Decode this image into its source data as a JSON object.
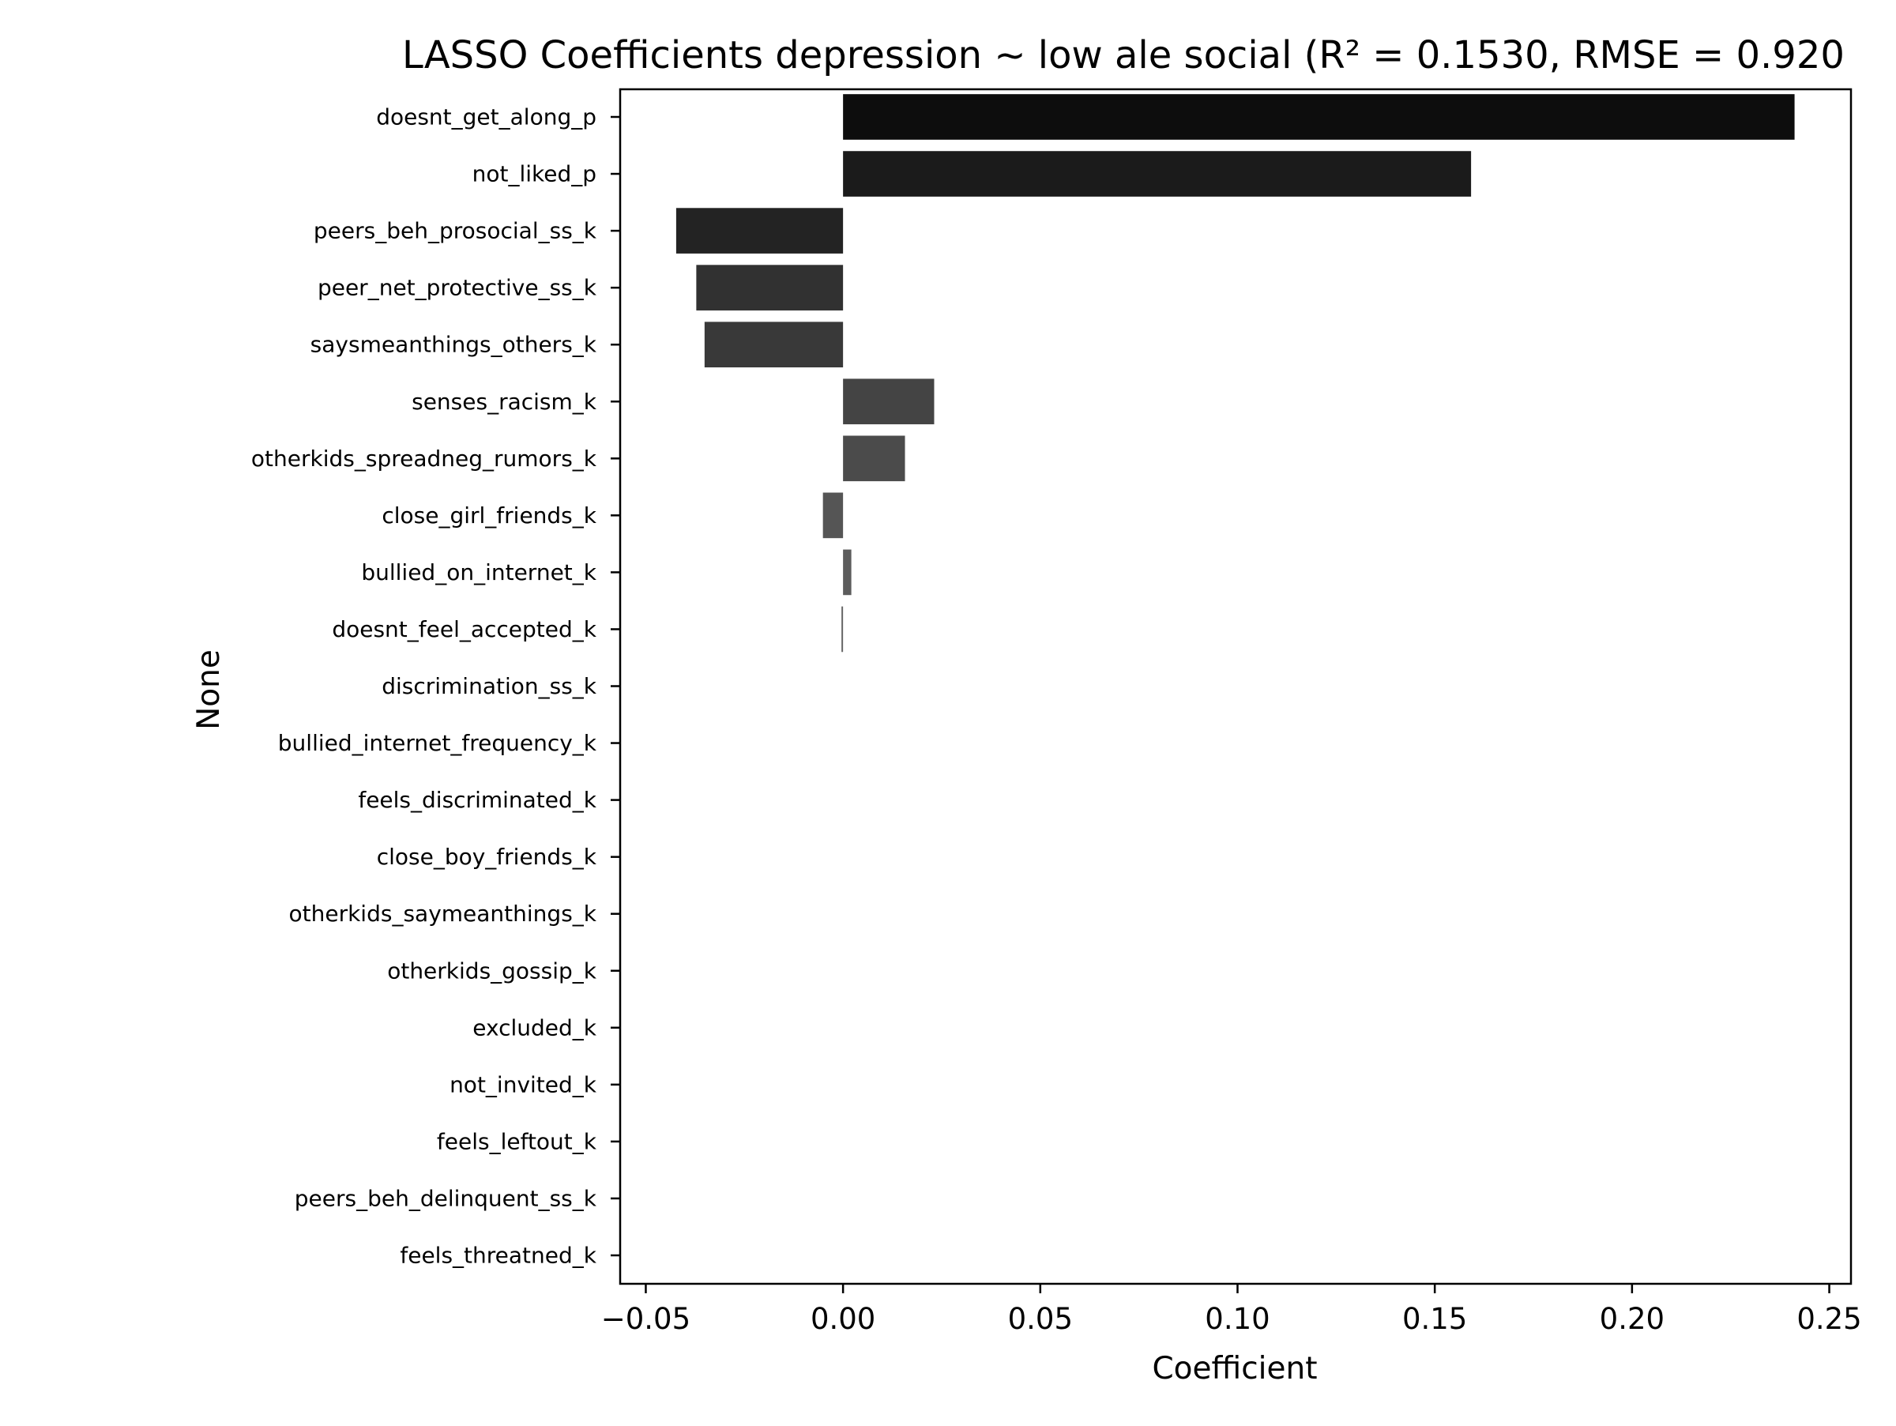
{
  "chart_data": {
    "type": "bar",
    "orientation": "horizontal",
    "title": "LASSO Coefficients depression ~ low ale social (R² = 0.1530, RMSE = 0.920",
    "xlabel": "Coefficient",
    "ylabel": "None",
    "xlim": [
      -0.0565,
      0.2555
    ],
    "xticks": [
      "−0.05",
      "0.00",
      "0.05",
      "0.10",
      "0.15",
      "0.20",
      "0.25"
    ],
    "xtick_values": [
      -0.05,
      0.0,
      0.05,
      0.1,
      0.15,
      0.2,
      0.25
    ],
    "grid": false,
    "legend": "none",
    "categories": [
      "doesnt_get_along_p",
      "not_liked_p",
      "peers_beh_prosocial_ss_k",
      "peer_net_protective_ss_k",
      "saysmeanthings_others_k",
      "senses_racism_k",
      "otherkids_spreadneg_rumors_k",
      "close_girl_friends_k",
      "bullied_on_internet_k",
      "doesnt_feel_accepted_k",
      "discrimination_ss_k",
      "bullied_internet_frequency_k",
      "feels_discriminated_k",
      "close_boy_friends_k",
      "otherkids_saymeanthings_k",
      "otherkids_gossip_k",
      "excluded_k",
      "not_invited_k",
      "feels_leftout_k",
      "peers_beh_delinquent_ss_k",
      "feels_threatned_k"
    ],
    "values": [
      0.2412,
      0.1592,
      -0.0423,
      -0.0372,
      -0.0351,
      0.0231,
      0.0157,
      -0.0051,
      0.0021,
      -0.0004,
      0,
      0,
      0,
      0,
      0,
      0,
      0,
      0,
      0,
      0,
      0
    ],
    "colors": [
      "#0d0d0d",
      "#1b1b1b",
      "#232323",
      "#313131",
      "#393939",
      "#444444",
      "#4b4b4b",
      "#555555",
      "#5c5c5c",
      "#666666",
      "#6d6d6d",
      "#747474",
      "#7b7b7b",
      "#828282",
      "#898989",
      "#909090",
      "#979797",
      "#9e9e9e",
      "#a5a5a5",
      "#acacac",
      "#b3b3b3"
    ]
  }
}
